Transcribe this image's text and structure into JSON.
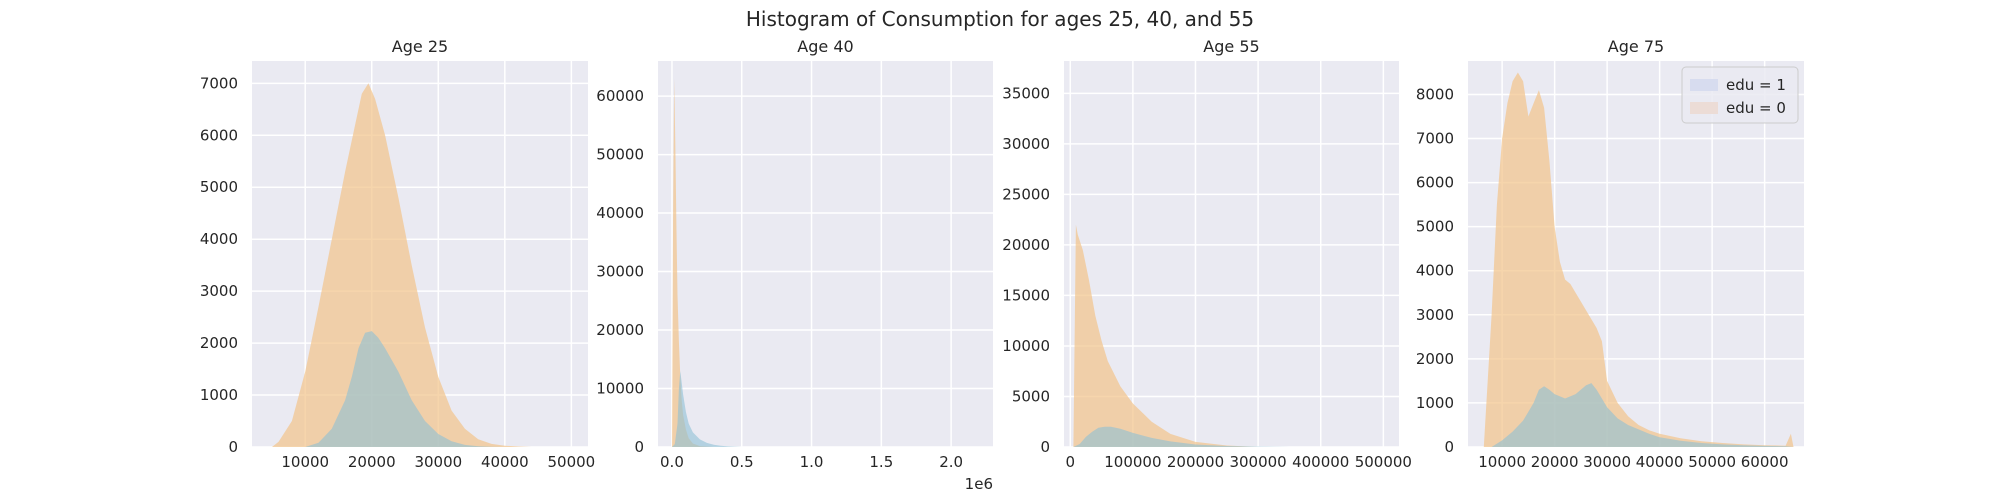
{
  "figure": {
    "title": "Histogram of Consumption for ages 25, 40, and 55",
    "background": "#ffffff",
    "axes_facecolor": "#eaeaf2",
    "grid_color": "#ffffff",
    "colors": {
      "edu1": "#8dbfd6",
      "edu0": "#f3c58c"
    }
  },
  "legend": {
    "placement": "upper-right of Age 75 panel",
    "entries": [
      {
        "label": "edu = 1",
        "color": "#d7dcef"
      },
      {
        "label": "edu = 0",
        "color": "#ecdcd6"
      }
    ]
  },
  "chart_data": [
    {
      "type": "area",
      "title": "Age 25",
      "xlim": [
        2000,
        52500
      ],
      "ylim": [
        0,
        7430
      ],
      "xticks": [
        10000,
        20000,
        30000,
        40000,
        50000
      ],
      "xtick_labels": [
        "10000",
        "20000",
        "30000",
        "40000",
        "50000"
      ],
      "yticks": [
        0,
        1000,
        2000,
        3000,
        4000,
        5000,
        6000,
        7000
      ],
      "ytick_labels": [
        "0",
        "1000",
        "2000",
        "3000",
        "4000",
        "5000",
        "6000",
        "7000"
      ],
      "offset_label": "",
      "series": [
        {
          "key": "edu0",
          "x": [
            5000,
            6000,
            8000,
            10000,
            12000,
            14000,
            16000,
            17500,
            18500,
            19500,
            20500,
            22000,
            24000,
            26000,
            28000,
            30000,
            32000,
            34000,
            36000,
            38000,
            40000,
            42000,
            44000
          ],
          "y": [
            0,
            100,
            500,
            1450,
            2700,
            4000,
            5300,
            6200,
            6800,
            7000,
            6700,
            6000,
            4800,
            3500,
            2300,
            1350,
            700,
            350,
            150,
            60,
            25,
            10,
            0
          ]
        },
        {
          "key": "edu1",
          "x": [
            10000,
            12000,
            14000,
            16000,
            17000,
            18000,
            19000,
            20000,
            21000,
            22000,
            24000,
            26000,
            28000,
            30000,
            32000,
            34000,
            36000,
            38000,
            40000
          ],
          "y": [
            0,
            80,
            350,
            900,
            1350,
            1900,
            2200,
            2230,
            2100,
            1900,
            1450,
            900,
            500,
            250,
            110,
            40,
            15,
            5,
            0
          ]
        }
      ]
    },
    {
      "type": "area",
      "title": "Age 40",
      "xlim": [
        -100000,
        2300000
      ],
      "ylim": [
        0,
        66000
      ],
      "xticks": [
        0,
        500000,
        1000000,
        1500000,
        2000000
      ],
      "xtick_labels": [
        "0.0",
        "0.5",
        "1.0",
        "1.5",
        "2.0"
      ],
      "yticks": [
        0,
        10000,
        20000,
        30000,
        40000,
        50000,
        60000
      ],
      "ytick_labels": [
        "0",
        "10000",
        "20000",
        "30000",
        "40000",
        "50000",
        "60000"
      ],
      "offset_label": "1e6",
      "series": [
        {
          "key": "edu0",
          "x": [
            0,
            8000,
            16000,
            24000,
            32000,
            40000,
            50000,
            60000,
            70000,
            80000,
            100000,
            120000,
            150000,
            200000,
            300000
          ],
          "y": [
            0,
            40000,
            63000,
            52000,
            38000,
            26000,
            18000,
            12000,
            8000,
            5500,
            3000,
            1500,
            600,
            150,
            0
          ]
        },
        {
          "key": "edu1",
          "x": [
            0,
            20000,
            40000,
            50000,
            60000,
            70000,
            80000,
            100000,
            120000,
            150000,
            200000,
            250000,
            300000,
            350000,
            400000,
            500000
          ],
          "y": [
            0,
            500,
            4000,
            10000,
            13000,
            11000,
            9000,
            6000,
            4000,
            2500,
            1300,
            700,
            400,
            200,
            100,
            0
          ]
        }
      ]
    },
    {
      "type": "area",
      "title": "Age 55",
      "xlim": [
        -10000,
        525000
      ],
      "ylim": [
        0,
        38200
      ],
      "xticks": [
        0,
        100000,
        200000,
        300000,
        400000,
        500000
      ],
      "xtick_labels": [
        "0",
        "100000",
        "200000",
        "300000",
        "400000",
        "500000"
      ],
      "yticks": [
        0,
        5000,
        10000,
        15000,
        20000,
        25000,
        30000,
        35000
      ],
      "ytick_labels": [
        "0",
        "5000",
        "10000",
        "15000",
        "20000",
        "25000",
        "30000",
        "35000"
      ],
      "offset_label": "",
      "series": [
        {
          "key": "edu0",
          "x": [
            5000,
            9000,
            12000,
            20000,
            30000,
            40000,
            50000,
            60000,
            80000,
            100000,
            130000,
            160000,
            200000,
            250000,
            300000
          ],
          "y": [
            0,
            22000,
            21000,
            19500,
            16500,
            13000,
            10500,
            8500,
            6000,
            4300,
            2500,
            1300,
            500,
            150,
            0
          ]
        },
        {
          "key": "edu1",
          "x": [
            5000,
            15000,
            25000,
            35000,
            45000,
            55000,
            65000,
            80000,
            100000,
            130000,
            160000,
            200000,
            250000,
            300000,
            350000
          ],
          "y": [
            0,
            300,
            1000,
            1500,
            1900,
            2000,
            2000,
            1800,
            1400,
            900,
            550,
            250,
            100,
            40,
            0
          ]
        }
      ]
    },
    {
      "type": "area",
      "title": "Age 75",
      "xlim": [
        3500,
        67500
      ],
      "ylim": [
        0,
        8760
      ],
      "xticks": [
        10000,
        20000,
        30000,
        40000,
        50000,
        60000
      ],
      "xtick_labels": [
        "10000",
        "20000",
        "30000",
        "40000",
        "50000",
        "60000"
      ],
      "yticks": [
        0,
        1000,
        2000,
        3000,
        4000,
        5000,
        6000,
        7000,
        8000
      ],
      "ytick_labels": [
        "0",
        "1000",
        "2000",
        "3000",
        "4000",
        "5000",
        "6000",
        "7000",
        "8000"
      ],
      "offset_label": "",
      "series": [
        {
          "key": "edu0",
          "x": [
            6500,
            7000,
            8000,
            9000,
            10000,
            11000,
            12000,
            13000,
            14000,
            15000,
            16000,
            17000,
            18000,
            19000,
            20000,
            21000,
            22000,
            23000,
            24000,
            25000,
            26000,
            27000,
            28000,
            29000,
            30000,
            32000,
            34000,
            36000,
            38000,
            40000,
            44000,
            48000,
            52000,
            56000,
            60000,
            64000,
            65000,
            65500
          ],
          "y": [
            0,
            1000,
            3000,
            5500,
            7000,
            7800,
            8300,
            8500,
            8300,
            7500,
            7800,
            8100,
            7700,
            6500,
            5000,
            4200,
            3800,
            3700,
            3500,
            3300,
            3100,
            2900,
            2700,
            2400,
            1500,
            1000,
            700,
            500,
            380,
            300,
            200,
            130,
            90,
            60,
            40,
            30,
            300,
            0
          ]
        },
        {
          "key": "edu1",
          "x": [
            8000,
            10000,
            12000,
            14000,
            15000,
            16000,
            17000,
            18000,
            19000,
            20000,
            22000,
            24000,
            26000,
            27000,
            28000,
            29000,
            30000,
            32000,
            34000,
            36000,
            38000,
            40000,
            44000,
            48000,
            52000,
            56000,
            60000,
            64000,
            65500
          ],
          "y": [
            0,
            150,
            350,
            600,
            800,
            1000,
            1300,
            1380,
            1300,
            1200,
            1100,
            1200,
            1400,
            1450,
            1300,
            1100,
            900,
            650,
            500,
            400,
            300,
            220,
            140,
            90,
            60,
            40,
            25,
            15,
            0
          ]
        }
      ]
    }
  ]
}
